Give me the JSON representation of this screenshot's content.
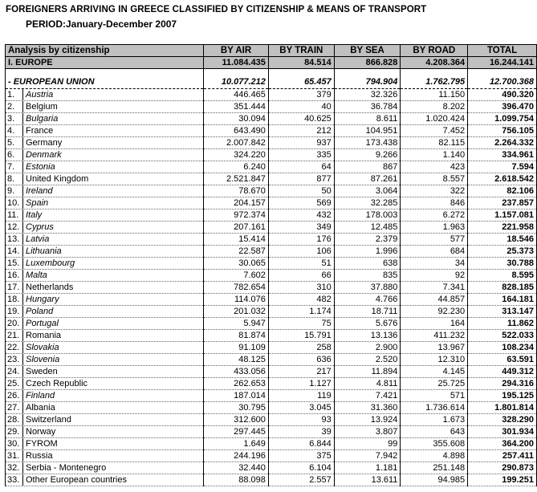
{
  "title": "FOREIGNERS ARRIVING IN GREECE CLASSIFIED BY CITIZENSHIP & MEANS OF TRANSPORT",
  "period": "PERIOD:January-December 2007",
  "headers": [
    "Analysis by citizenship",
    "BY AIR",
    "BY TRAIN",
    "BY SEA",
    "BY ROAD",
    "TOTAL"
  ],
  "region": {
    "name": "I. EUROPE",
    "air": "11.084.435",
    "train": "84.514",
    "sea": "866.828",
    "road": "4.208.364",
    "total": "16.244.141"
  },
  "eu": {
    "name": "- EUROPEAN UNION",
    "air": "10.077.212",
    "train": "65.457",
    "sea": "794.904",
    "road": "1.762.795",
    "total": "12.700.368"
  },
  "rows": [
    {
      "idx": "1.",
      "name": "Austria",
      "air": "446.465",
      "train": "379",
      "sea": "32.326",
      "road": "11.150",
      "total": "490.320",
      "eu": true
    },
    {
      "idx": "2.",
      "name": "Belgium",
      "air": "351.444",
      "train": "40",
      "sea": "36.784",
      "road": "8.202",
      "total": "396.470",
      "eu": false
    },
    {
      "idx": "3.",
      "name": "Bulgaria",
      "air": "30.094",
      "train": "40.625",
      "sea": "8.611",
      "road": "1.020.424",
      "total": "1.099.754",
      "eu": true
    },
    {
      "idx": "4.",
      "name": "France",
      "air": "643.490",
      "train": "212",
      "sea": "104.951",
      "road": "7.452",
      "total": "756.105",
      "eu": false
    },
    {
      "idx": "5.",
      "name": "Germany",
      "air": "2.007.842",
      "train": "937",
      "sea": "173.438",
      "road": "82.115",
      "total": "2.264.332",
      "eu": false
    },
    {
      "idx": "6.",
      "name": "Denmark",
      "air": "324.220",
      "train": "335",
      "sea": "9.266",
      "road": "1.140",
      "total": "334.961",
      "eu": true
    },
    {
      "idx": "7.",
      "name": "Estonia",
      "air": "6.240",
      "train": "64",
      "sea": "867",
      "road": "423",
      "total": "7.594",
      "eu": true
    },
    {
      "idx": "8.",
      "name": "United Kingdom",
      "air": "2.521.847",
      "train": "877",
      "sea": "87.261",
      "road": "8.557",
      "total": "2.618.542",
      "eu": false
    },
    {
      "idx": "9.",
      "name": "Ireland",
      "air": "78.670",
      "train": "50",
      "sea": "3.064",
      "road": "322",
      "total": "82.106",
      "eu": true
    },
    {
      "idx": "10.",
      "name": "Spain",
      "air": "204.157",
      "train": "569",
      "sea": "32.285",
      "road": "846",
      "total": "237.857",
      "eu": true
    },
    {
      "idx": "11.",
      "name": "Italy",
      "air": "972.374",
      "train": "432",
      "sea": "178.003",
      "road": "6.272",
      "total": "1.157.081",
      "eu": true
    },
    {
      "idx": "12.",
      "name": "Cyprus",
      "air": "207.161",
      "train": "349",
      "sea": "12.485",
      "road": "1.963",
      "total": "221.958",
      "eu": true
    },
    {
      "idx": "13.",
      "name": "Latvia",
      "air": "15.414",
      "train": "176",
      "sea": "2.379",
      "road": "577",
      "total": "18.546",
      "eu": true
    },
    {
      "idx": "14.",
      "name": "Lithuania",
      "air": "22.587",
      "train": "106",
      "sea": "1.996",
      "road": "684",
      "total": "25.373",
      "eu": true
    },
    {
      "idx": "15.",
      "name": "Luxembourg",
      "air": "30.065",
      "train": "51",
      "sea": "638",
      "road": "34",
      "total": "30.788",
      "eu": true
    },
    {
      "idx": "16.",
      "name": "Malta",
      "air": "7.602",
      "train": "66",
      "sea": "835",
      "road": "92",
      "total": "8.595",
      "eu": true
    },
    {
      "idx": "17.",
      "name": "Netherlands",
      "air": "782.654",
      "train": "310",
      "sea": "37.880",
      "road": "7.341",
      "total": "828.185",
      "eu": false
    },
    {
      "idx": "18.",
      "name": "Hungary",
      "air": "114.076",
      "train": "482",
      "sea": "4.766",
      "road": "44.857",
      "total": "164.181",
      "eu": true
    },
    {
      "idx": "19.",
      "name": "Poland",
      "air": "201.032",
      "train": "1.174",
      "sea": "18.711",
      "road": "92.230",
      "total": "313.147",
      "eu": true
    },
    {
      "idx": "20.",
      "name": "Portugal",
      "air": "5.947",
      "train": "75",
      "sea": "5.676",
      "road": "164",
      "total": "11.862",
      "eu": true
    },
    {
      "idx": "21.",
      "name": "Romania",
      "air": "81.874",
      "train": "15.791",
      "sea": "13.136",
      "road": "411.232",
      "total": "522.033",
      "eu": false
    },
    {
      "idx": "22.",
      "name": "Slovakia",
      "air": "91.109",
      "train": "258",
      "sea": "2.900",
      "road": "13.967",
      "total": "108.234",
      "eu": true
    },
    {
      "idx": "23.",
      "name": "Slovenia",
      "air": "48.125",
      "train": "636",
      "sea": "2.520",
      "road": "12.310",
      "total": "63.591",
      "eu": true
    },
    {
      "idx": "24.",
      "name": "Sweden",
      "air": "433.056",
      "train": "217",
      "sea": "11.894",
      "road": "4.145",
      "total": "449.312",
      "eu": false
    },
    {
      "idx": "25.",
      "name": "Czech Republic",
      "air": "262.653",
      "train": "1.127",
      "sea": "4.811",
      "road": "25.725",
      "total": "294.316",
      "eu": false
    },
    {
      "idx": "26.",
      "name": "Finland",
      "air": "187.014",
      "train": "119",
      "sea": "7.421",
      "road": "571",
      "total": "195.125",
      "eu": true
    },
    {
      "idx": "27.",
      "name": "Albania",
      "air": "30.795",
      "train": "3.045",
      "sea": "31.360",
      "road": "1.736.614",
      "total": "1.801.814",
      "eu": false
    },
    {
      "idx": "28.",
      "name": "Switzerland",
      "air": "312.600",
      "train": "93",
      "sea": "13.924",
      "road": "1.673",
      "total": "328.290",
      "eu": false
    },
    {
      "idx": "29.",
      "name": "Norway",
      "air": "297.445",
      "train": "39",
      "sea": "3.807",
      "road": "643",
      "total": "301.934",
      "eu": false
    },
    {
      "idx": "30.",
      "name": "FYROM",
      "air": "1.649",
      "train": "6.844",
      "sea": "99",
      "road": "355.608",
      "total": "364.200",
      "eu": false
    },
    {
      "idx": "31.",
      "name": "Russia",
      "air": "244.196",
      "train": "375",
      "sea": "7.942",
      "road": "4.898",
      "total": "257.411",
      "eu": false
    },
    {
      "idx": "32.",
      "name": "Serbia - Montenegro",
      "air": "32.440",
      "train": "6.104",
      "sea": "1.181",
      "road": "251.148",
      "total": "290.873",
      "eu": false
    },
    {
      "idx": "33.",
      "name": "Other European countries",
      "air": "88.098",
      "train": "2.557",
      "sea": "13.611",
      "road": "94.985",
      "total": "199.251",
      "eu": false
    }
  ]
}
